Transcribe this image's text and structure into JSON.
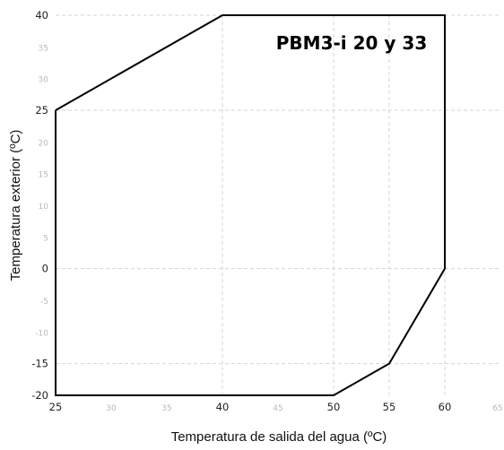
{
  "chart_data": {
    "type": "line",
    "title": "PBM3-i 20 y 33",
    "xlabel": "Temperatura de salida del agua (ºC)",
    "ylabel": "Temperatura exterior (ºC)",
    "xlim": [
      25,
      65
    ],
    "ylim": [
      -20,
      40
    ],
    "x_ticks": [
      25,
      30,
      35,
      40,
      45,
      50,
      55,
      60,
      65
    ],
    "x_tick_labels": [
      "25",
      "30",
      "35",
      "40",
      "45",
      "50",
      "55",
      "60",
      "65"
    ],
    "x_major_ticks": [
      25,
      40,
      50,
      55,
      60
    ],
    "y_ticks": [
      -20,
      -15,
      -10,
      -5,
      0,
      5,
      10,
      15,
      20,
      25,
      30,
      35,
      40
    ],
    "y_tick_labels": [
      "-20",
      "-15",
      "-10",
      "-5",
      "0",
      "5",
      "10",
      "15",
      "20",
      "25",
      "30",
      "35",
      "40"
    ],
    "y_major_ticks": [
      -20,
      -15,
      0,
      25,
      40
    ],
    "grid": "dashed at major ticks",
    "series": [
      {
        "points": [
          {
            "x": 25,
            "y": 25
          },
          {
            "x": 40,
            "y": 40
          },
          {
            "x": 60,
            "y": 40
          },
          {
            "x": 60,
            "y": 0
          },
          {
            "x": 55,
            "y": -15
          },
          {
            "x": 50,
            "y": -20
          },
          {
            "x": 25,
            "y": -20
          },
          {
            "x": 25,
            "y": 25
          }
        ],
        "color": "#000000"
      }
    ],
    "grid_color": "#d4d4d4"
  }
}
